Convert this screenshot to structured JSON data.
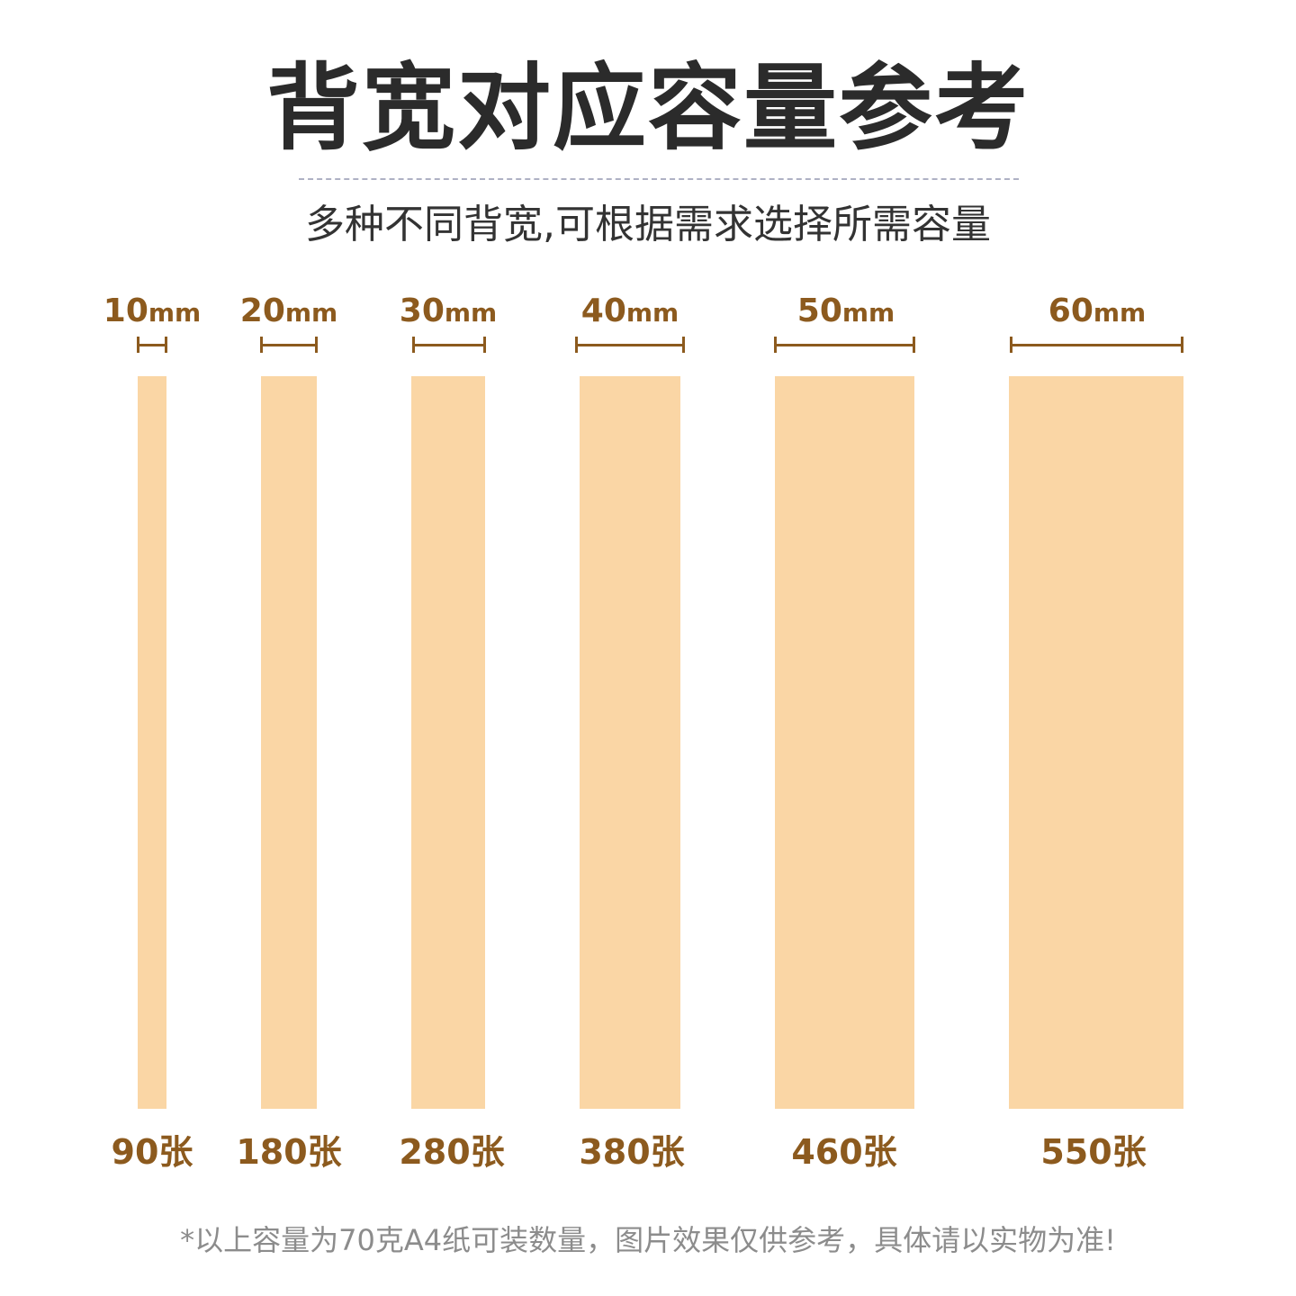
{
  "title": "背宽对应容量参考",
  "subtitle": "多种不同背宽,可根据需求选择所需容量",
  "colors": {
    "accent": "#8c5a1e",
    "spine_fill": "#fad6a5",
    "title": "#2b2b2b",
    "divider": "#aeb1c4",
    "footnote": "#8c8c8c"
  },
  "unit": "mm",
  "options": [
    {
      "width": "10",
      "count": "90张"
    },
    {
      "width": "20",
      "count": "180张"
    },
    {
      "width": "30",
      "count": "280张"
    },
    {
      "width": "40",
      "count": "380张"
    },
    {
      "width": "50",
      "count": "460张"
    },
    {
      "width": "60",
      "count": "550张"
    }
  ],
  "footnote": "*以上容量为70克A4纸可装数量，图片效果仅供参考，具体请以实物为准!"
}
